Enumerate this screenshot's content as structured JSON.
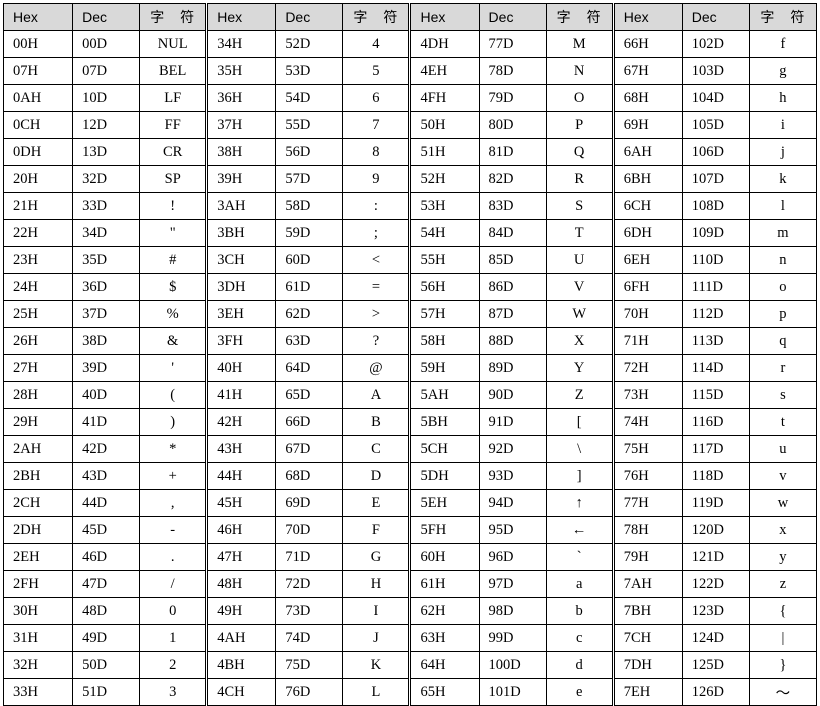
{
  "colors": {
    "header_bg": "#d9d9d9",
    "border": "#000000",
    "text": "#000000",
    "page_bg": "#ffffff"
  },
  "table": {
    "header": {
      "hex": "Hex",
      "dec": "Dec",
      "char": "字　符"
    },
    "groups": [
      {
        "rows": [
          [
            "00H",
            "00D",
            "NUL"
          ],
          [
            "07H",
            "07D",
            "BEL"
          ],
          [
            "0AH",
            "10D",
            "LF"
          ],
          [
            "0CH",
            "12D",
            "FF"
          ],
          [
            "0DH",
            "13D",
            "CR"
          ],
          [
            "20H",
            "32D",
            "SP"
          ],
          [
            "21H",
            "33D",
            "!"
          ],
          [
            "22H",
            "34D",
            "\""
          ],
          [
            "23H",
            "35D",
            "#"
          ],
          [
            "24H",
            "36D",
            "$"
          ],
          [
            "25H",
            "37D",
            "%"
          ],
          [
            "26H",
            "38D",
            "&"
          ],
          [
            "27H",
            "39D",
            "'"
          ],
          [
            "28H",
            "40D",
            "("
          ],
          [
            "29H",
            "41D",
            ")"
          ],
          [
            "2AH",
            "42D",
            "*"
          ],
          [
            "2BH",
            "43D",
            "+"
          ],
          [
            "2CH",
            "44D",
            ","
          ],
          [
            "2DH",
            "45D",
            "-"
          ],
          [
            "2EH",
            "46D",
            "."
          ],
          [
            "2FH",
            "47D",
            "/"
          ],
          [
            "30H",
            "48D",
            "0"
          ],
          [
            "31H",
            "49D",
            "1"
          ],
          [
            "32H",
            "50D",
            "2"
          ],
          [
            "33H",
            "51D",
            "3"
          ]
        ]
      },
      {
        "rows": [
          [
            "34H",
            "52D",
            "4"
          ],
          [
            "35H",
            "53D",
            "5"
          ],
          [
            "36H",
            "54D",
            "6"
          ],
          [
            "37H",
            "55D",
            "7"
          ],
          [
            "38H",
            "56D",
            "8"
          ],
          [
            "39H",
            "57D",
            "9"
          ],
          [
            "3AH",
            "58D",
            ":"
          ],
          [
            "3BH",
            "59D",
            ";"
          ],
          [
            "3CH",
            "60D",
            "<"
          ],
          [
            "3DH",
            "61D",
            "="
          ],
          [
            "3EH",
            "62D",
            ">"
          ],
          [
            "3FH",
            "63D",
            "?"
          ],
          [
            "40H",
            "64D",
            "@"
          ],
          [
            "41H",
            "65D",
            "A"
          ],
          [
            "42H",
            "66D",
            "B"
          ],
          [
            "43H",
            "67D",
            "C"
          ],
          [
            "44H",
            "68D",
            "D"
          ],
          [
            "45H",
            "69D",
            "E"
          ],
          [
            "46H",
            "70D",
            "F"
          ],
          [
            "47H",
            "71D",
            "G"
          ],
          [
            "48H",
            "72D",
            "H"
          ],
          [
            "49H",
            "73D",
            "I"
          ],
          [
            "4AH",
            "74D",
            "J"
          ],
          [
            "4BH",
            "75D",
            "K"
          ],
          [
            "4CH",
            "76D",
            "L"
          ]
        ]
      },
      {
        "rows": [
          [
            "4DH",
            "77D",
            "M"
          ],
          [
            "4EH",
            "78D",
            "N"
          ],
          [
            "4FH",
            "79D",
            "O"
          ],
          [
            "50H",
            "80D",
            "P"
          ],
          [
            "51H",
            "81D",
            "Q"
          ],
          [
            "52H",
            "82D",
            "R"
          ],
          [
            "53H",
            "83D",
            "S"
          ],
          [
            "54H",
            "84D",
            "T"
          ],
          [
            "55H",
            "85D",
            "U"
          ],
          [
            "56H",
            "86D",
            "V"
          ],
          [
            "57H",
            "87D",
            "W"
          ],
          [
            "58H",
            "88D",
            "X"
          ],
          [
            "59H",
            "89D",
            "Y"
          ],
          [
            "5AH",
            "90D",
            "Z"
          ],
          [
            "5BH",
            "91D",
            "["
          ],
          [
            "5CH",
            "92D",
            "\\"
          ],
          [
            "5DH",
            "93D",
            "]"
          ],
          [
            "5EH",
            "94D",
            "↑"
          ],
          [
            "5FH",
            "95D",
            "←"
          ],
          [
            "60H",
            "96D",
            "`"
          ],
          [
            "61H",
            "97D",
            "a"
          ],
          [
            "62H",
            "98D",
            "b"
          ],
          [
            "63H",
            "99D",
            "c"
          ],
          [
            "64H",
            "100D",
            "d"
          ],
          [
            "65H",
            "101D",
            "e"
          ]
        ]
      },
      {
        "rows": [
          [
            "66H",
            "102D",
            "f"
          ],
          [
            "67H",
            "103D",
            "g"
          ],
          [
            "68H",
            "104D",
            "h"
          ],
          [
            "69H",
            "105D",
            "i"
          ],
          [
            "6AH",
            "106D",
            "j"
          ],
          [
            "6BH",
            "107D",
            "k"
          ],
          [
            "6CH",
            "108D",
            "l"
          ],
          [
            "6DH",
            "109D",
            "m"
          ],
          [
            "6EH",
            "110D",
            "n"
          ],
          [
            "6FH",
            "111D",
            "o"
          ],
          [
            "70H",
            "112D",
            "p"
          ],
          [
            "71H",
            "113D",
            "q"
          ],
          [
            "72H",
            "114D",
            "r"
          ],
          [
            "73H",
            "115D",
            "s"
          ],
          [
            "74H",
            "116D",
            "t"
          ],
          [
            "75H",
            "117D",
            "u"
          ],
          [
            "76H",
            "118D",
            "v"
          ],
          [
            "77H",
            "119D",
            "w"
          ],
          [
            "78H",
            "120D",
            "x"
          ],
          [
            "79H",
            "121D",
            "y"
          ],
          [
            "7AH",
            "122D",
            "z"
          ],
          [
            "7BH",
            "123D",
            "{"
          ],
          [
            "7CH",
            "124D",
            "|"
          ],
          [
            "7DH",
            "125D",
            "}"
          ],
          [
            "7EH",
            "126D",
            "～"
          ]
        ]
      }
    ]
  }
}
